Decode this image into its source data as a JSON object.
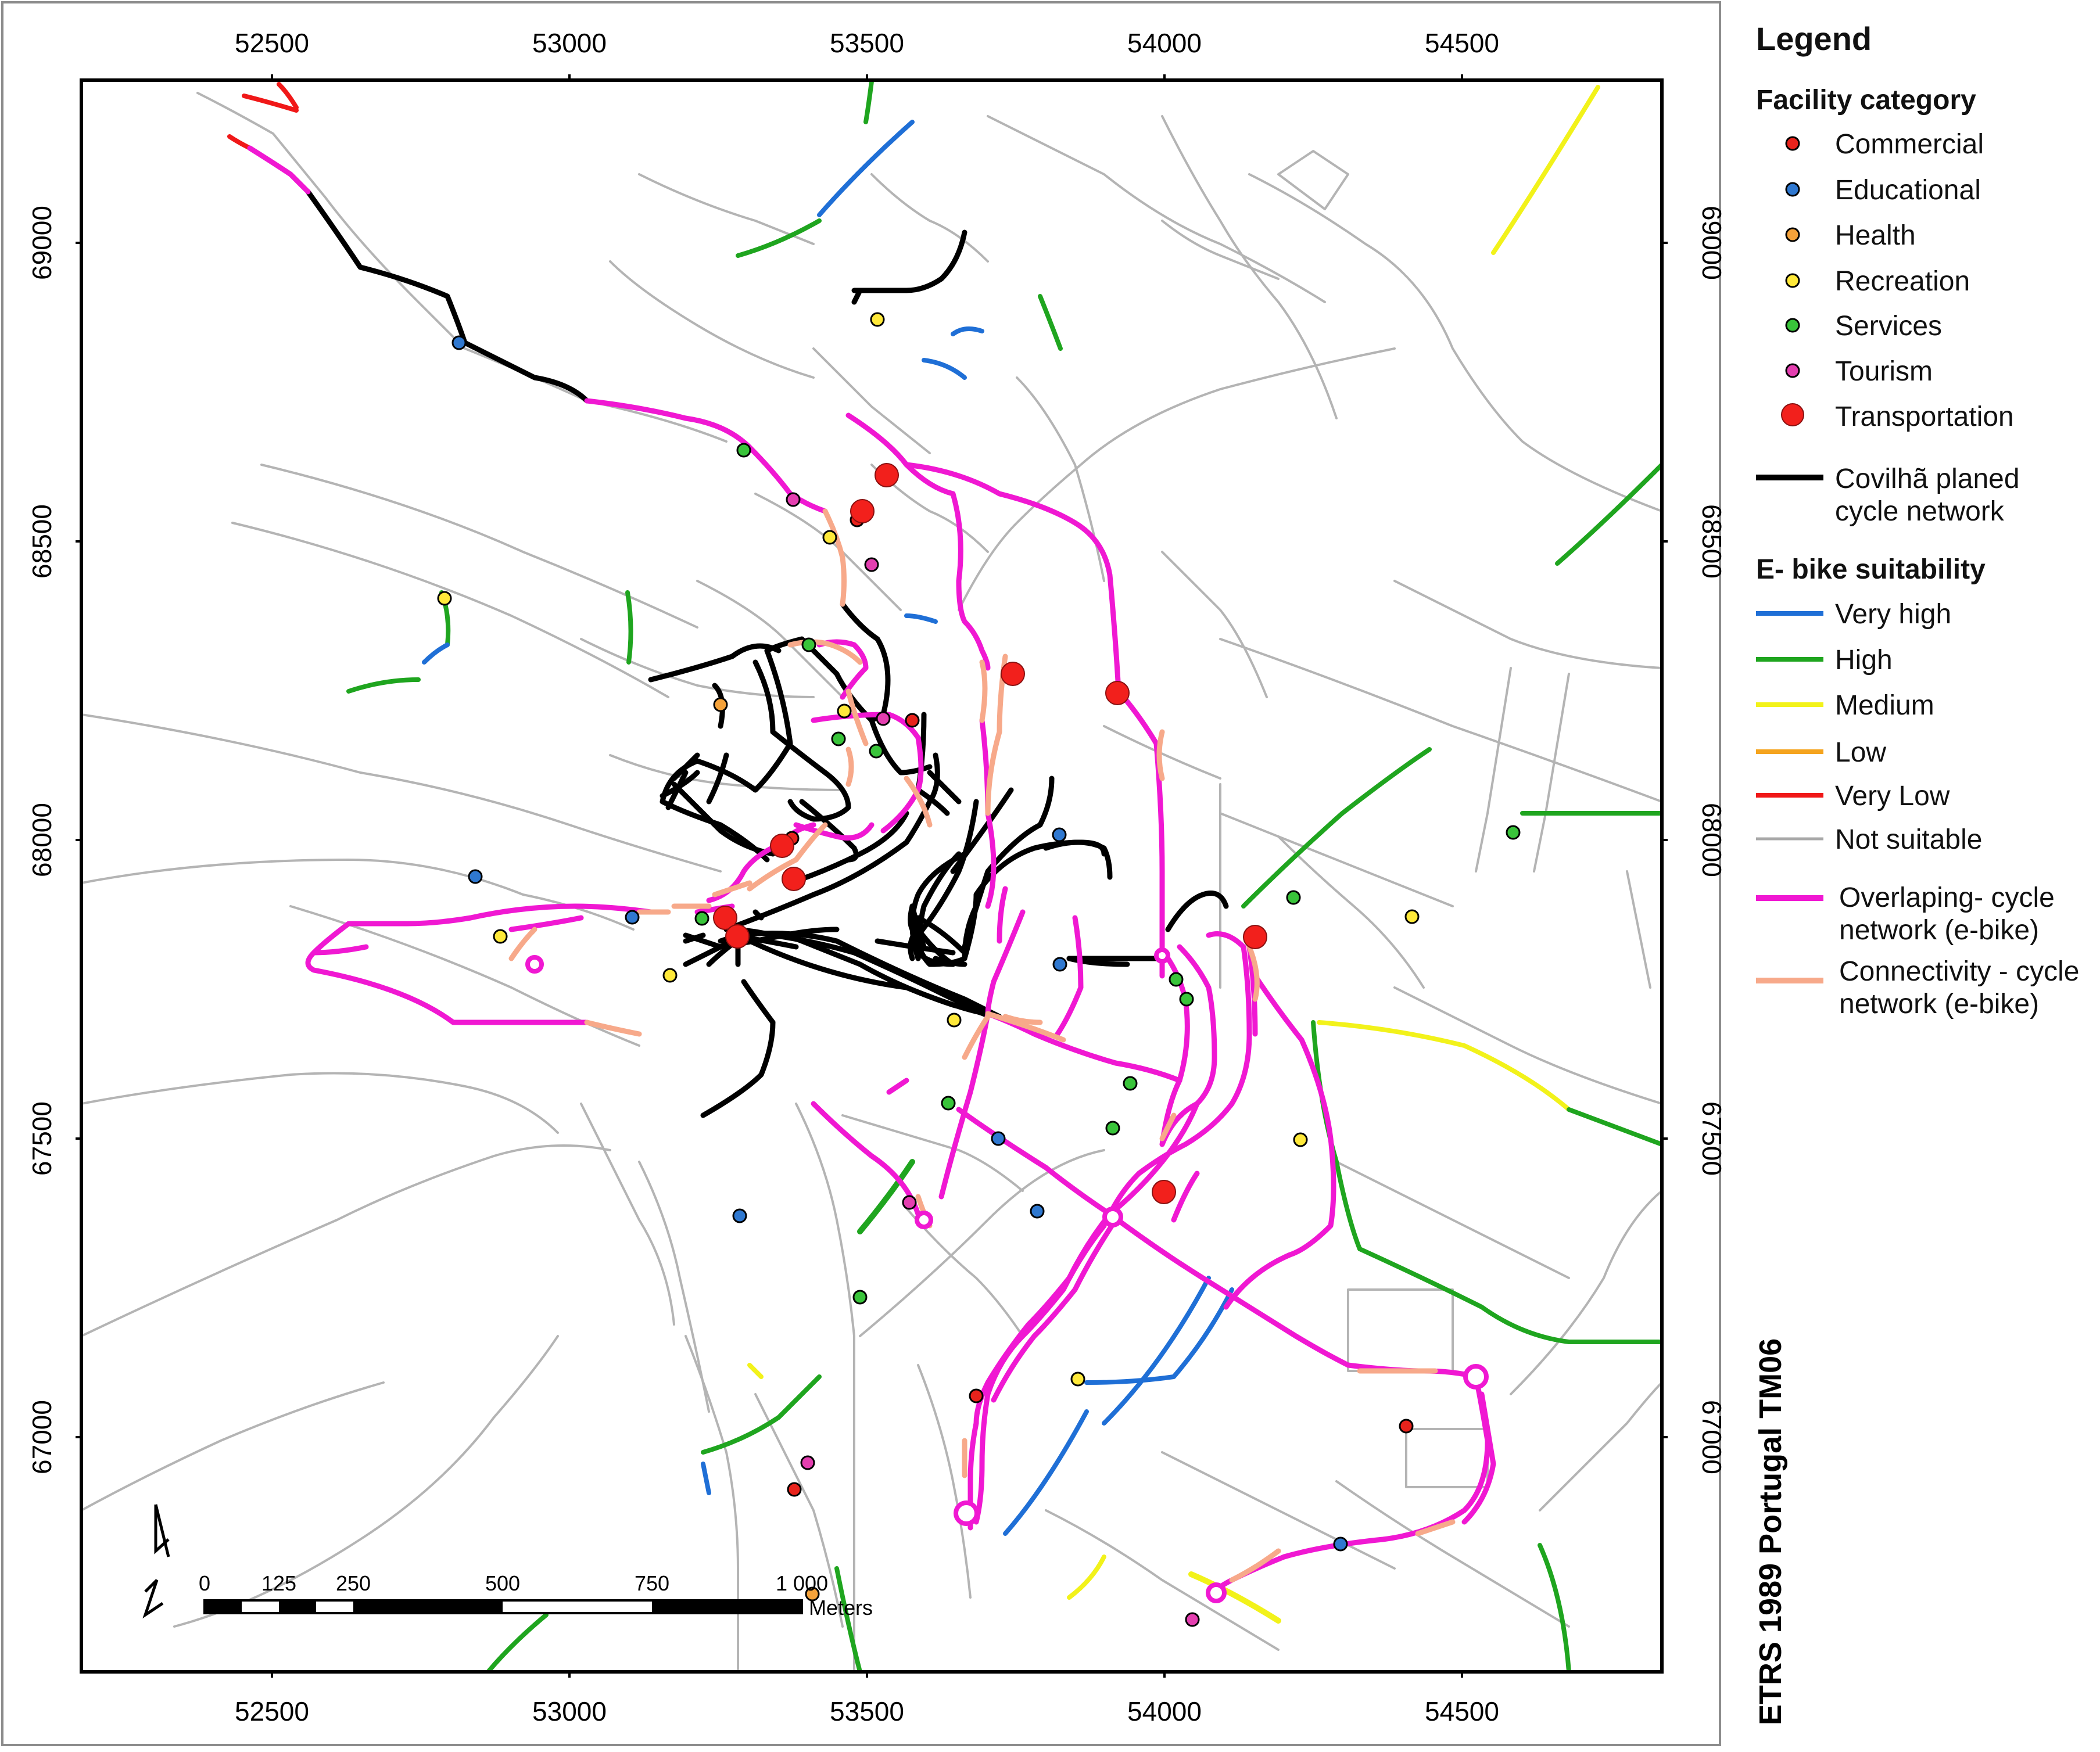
{
  "map": {
    "x_ticks": [
      "52500",
      "53000",
      "53500",
      "54000",
      "54500"
    ],
    "y_ticks": [
      "69000",
      "68500",
      "68000",
      "67500",
      "67000"
    ],
    "crs_label": "ETRS 1989 Portugal TM06",
    "north_arrow": "north-arrow-icon"
  },
  "scale_bar": {
    "labels": [
      "0",
      "125",
      "250",
      "500",
      "750",
      "1 000"
    ],
    "unit": "Meters"
  },
  "legend": {
    "title": "Legend",
    "facility_heading": "Facility category",
    "facility_items": [
      {
        "label": "Commercial",
        "color": "#e8231c"
      },
      {
        "label": "Educational",
        "color": "#2f78d0"
      },
      {
        "label": "Health",
        "color": "#f5a23a"
      },
      {
        "label": "Recreation",
        "color": "#ffe93a"
      },
      {
        "label": "Services",
        "color": "#39c43a"
      },
      {
        "label": "Tourism",
        "color": "#e43fb0"
      },
      {
        "label": "Transportation",
        "color": "#f2201c"
      }
    ],
    "planned_network": {
      "label_line1": "Covilhã planed",
      "label_line2": "cycle network",
      "color": "#000000"
    },
    "suitability_heading": "E- bike suitability",
    "suitability_items": [
      {
        "label": "Very high",
        "color": "#1f6fd6"
      },
      {
        "label": "High",
        "color": "#1fa51f"
      },
      {
        "label": "Medium",
        "color": "#f2f21a"
      },
      {
        "label": "Low",
        "color": "#f5a41e"
      },
      {
        "label": "Very Low",
        "color": "#f01818"
      },
      {
        "label": "Not suitable",
        "color": "#a8a8a8"
      }
    ],
    "overlap": {
      "label_line1": "Overlaping-  cycle",
      "label_line2": "network (e-bike)",
      "color": "#f018d2"
    },
    "connectivity": {
      "label_line1": "Connectivity - cycle",
      "label_line2": "network (e-bike)",
      "color": "#f7a98a"
    }
  }
}
